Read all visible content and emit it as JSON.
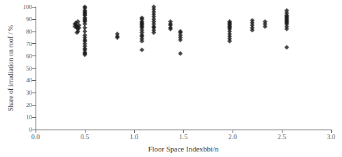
{
  "chart_data": {
    "type": "scatter",
    "xlabel": "Floor Space Indexbbi/n",
    "ylabel": "Share of irradiation on roof / %",
    "xlim": [
      0,
      3
    ],
    "ylim": [
      0,
      100
    ],
    "xticks": [
      {
        "value": 0,
        "label": "0.0"
      },
      {
        "value": 0.5,
        "label": "0.5"
      },
      {
        "value": 1,
        "label": "1.0"
      },
      {
        "value": 1.5,
        "label": "1.5"
      },
      {
        "value": 2,
        "label": "2.0"
      },
      {
        "value": 2.5,
        "label": "2.5"
      },
      {
        "value": 3,
        "label": "3.0"
      }
    ],
    "yticks": [
      0,
      10,
      20,
      30,
      40,
      50,
      60,
      70,
      80,
      90,
      100
    ],
    "marker": "diamond",
    "color": "#1a1a1a",
    "grid": false,
    "x": [
      0.4,
      0.4,
      0.41,
      0.41,
      0.42,
      0.42,
      0.42,
      0.43,
      0.43,
      0.43,
      0.44,
      0.44,
      0.5,
      0.5,
      0.5,
      0.5,
      0.5,
      0.5,
      0.5,
      0.5,
      0.5,
      0.5,
      0.5,
      0.5,
      0.5,
      0.5,
      0.5,
      0.5,
      0.5,
      0.5,
      0.5,
      0.5,
      0.5,
      0.5,
      0.5,
      0.5,
      0.5,
      0.83,
      0.83,
      0.83,
      1.08,
      1.08,
      1.08,
      1.08,
      1.08,
      1.08,
      1.08,
      1.08,
      1.08,
      1.08,
      1.08,
      1.08,
      1.08,
      1.08,
      1.08,
      1.2,
      1.2,
      1.2,
      1.2,
      1.2,
      1.2,
      1.2,
      1.2,
      1.2,
      1.2,
      1.2,
      1.2,
      1.37,
      1.37,
      1.37,
      1.37,
      1.37,
      1.47,
      1.47,
      1.47,
      1.47,
      1.47,
      1.47,
      1.97,
      1.97,
      1.97,
      1.97,
      1.97,
      1.97,
      1.97,
      1.97,
      1.97,
      1.97,
      1.97,
      1.97,
      2.2,
      2.2,
      2.2,
      2.2,
      2.2,
      2.33,
      2.33,
      2.33,
      2.55,
      2.55,
      2.55,
      2.55,
      2.55,
      2.55,
      2.55,
      2.55,
      2.55,
      2.55,
      2.55,
      2.55,
      2.55
    ],
    "values": [
      86,
      84,
      85,
      87,
      83,
      84,
      79,
      82,
      88,
      80,
      83,
      85,
      97,
      99,
      100,
      96,
      95,
      94,
      93,
      91,
      90,
      89,
      88,
      86,
      83,
      80,
      77,
      75,
      73,
      72,
      70,
      68,
      66,
      65,
      63,
      62,
      61,
      76,
      78,
      75,
      91,
      90,
      88,
      87,
      86,
      85,
      84,
      83,
      81,
      79,
      77,
      76,
      74,
      72,
      65,
      100,
      98,
      96,
      94,
      92,
      90,
      88,
      86,
      84,
      83,
      81,
      79,
      88,
      86,
      85,
      83,
      82,
      80,
      79,
      77,
      75,
      73,
      62,
      88,
      87,
      86,
      85,
      84,
      83,
      82,
      80,
      78,
      76,
      74,
      72,
      89,
      87,
      85,
      83,
      81,
      88,
      86,
      84,
      97,
      95,
      93,
      92,
      91,
      90,
      89,
      88,
      87,
      86,
      84,
      82,
      67
    ]
  }
}
